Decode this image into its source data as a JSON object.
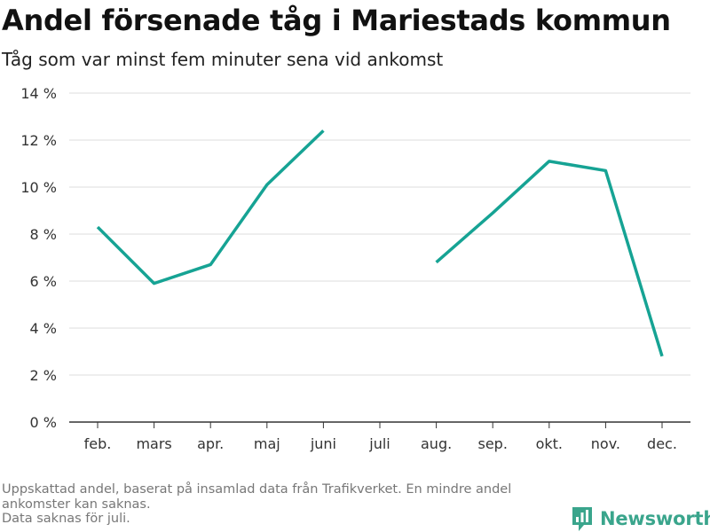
{
  "title": "Andel försenade tåg i Mariestads kommun",
  "subtitle": "Tåg som var minst fem minuter sena vid ankomst",
  "footnote": {
    "line1": "Uppskattad andel, baserat på insamlad data från Trafikverket. En mindre andel",
    "line2": "ankomster kan saknas.",
    "line3": "Data saknas för juli."
  },
  "brand": {
    "name": "Newsworthy",
    "icon": "newsworthy-logo-icon"
  },
  "colors": {
    "line": "#16a394",
    "grid": "#dddddd",
    "axis": "#333333",
    "brand": "#3aa58c"
  },
  "chart_data": {
    "type": "line",
    "categories": [
      "feb.",
      "mars",
      "apr.",
      "maj",
      "juni",
      "juli",
      "aug.",
      "sep.",
      "okt.",
      "nov.",
      "dec."
    ],
    "series": [
      {
        "values": [
          8.3,
          5.9,
          6.7,
          10.1,
          12.4,
          null,
          6.8,
          8.9,
          11.1,
          10.7,
          2.8
        ]
      }
    ],
    "ylim": [
      0,
      14
    ],
    "yticks": [
      0,
      2,
      4,
      6,
      8,
      10,
      12,
      14
    ],
    "ytick_labels": [
      "0 %",
      "2 %",
      "4 %",
      "6 %",
      "8 %",
      "10 %",
      "12 %",
      "14 %"
    ],
    "xlabel": "",
    "ylabel": "",
    "grid": true,
    "legend": "none"
  }
}
